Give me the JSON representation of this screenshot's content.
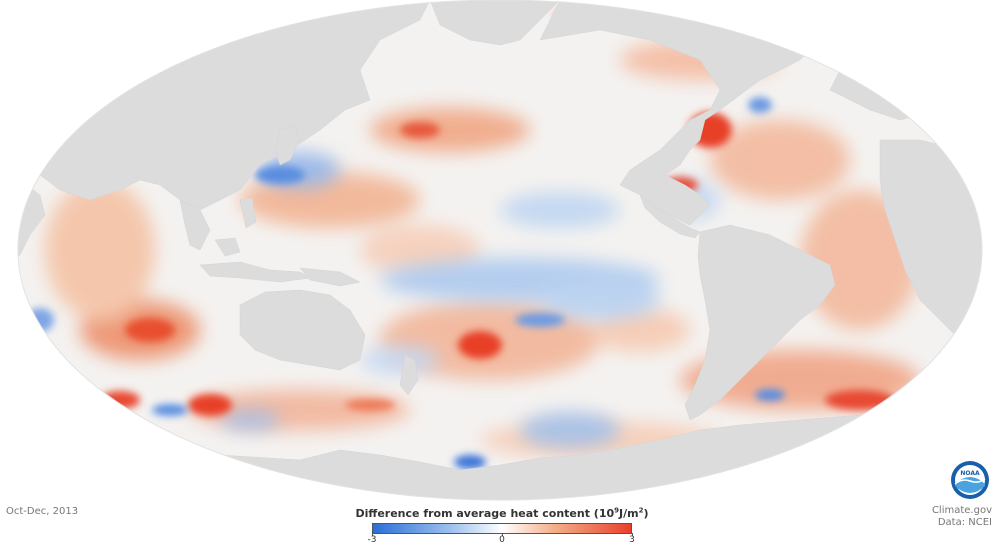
{
  "map": {
    "projection": "Mollweide (Pacific-centered)",
    "ocean_base_color": "#f4f2f0",
    "land_color": "#dcdcdc"
  },
  "date_label": "Oct-Dec, 2013",
  "legend": {
    "title_main": "Difference from average heat content (10",
    "title_exp": "9",
    "title_unit": "J/m",
    "title_unit_exp": "2",
    "title_close": ")",
    "ticks": [
      "-3",
      "0",
      "3"
    ],
    "tick_values": [
      -3,
      0,
      3
    ],
    "range": [
      -3,
      3
    ],
    "colors": {
      "low": "#2b6fd6",
      "low_mid": "#9cc1ee",
      "zero": "#ffffff",
      "high_mid": "#f4b08a",
      "high": "#e8402a"
    }
  },
  "credits": {
    "line1": "Climate.gov",
    "line2": "Data: NCEI"
  },
  "logo": {
    "text": "NOAA",
    "icon": "noaa-logo-icon",
    "ring_color": "#1a5fa8",
    "inner_color": "#4aa3df"
  }
}
